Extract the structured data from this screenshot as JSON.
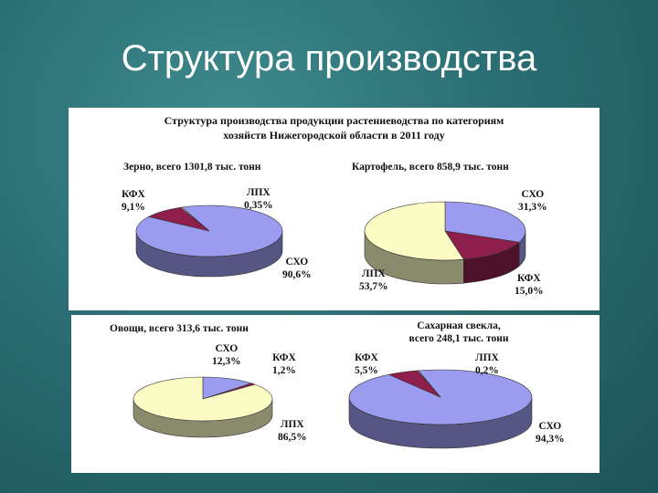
{
  "slide": {
    "title": "Структура производства"
  },
  "figure": {
    "title_line1": "Структура производства продукции растениеводства по категориям",
    "title_line2": "хозяйств Нижегородской области в 2011 году"
  },
  "colors": {
    "СХО": "#9b9cf0",
    "КФХ": "#8e1f4d",
    "ЛПХ": "#fbfbc4",
    "panel": "#ffffff",
    "background": "#2a6e73"
  },
  "chart_data": [
    {
      "type": "pie",
      "title": "Зерно, всего 1301,8 тыс. тонн",
      "slices": [
        {
          "name": "СХО",
          "value": 90.6,
          "label": "90,6%"
        },
        {
          "name": "КФХ",
          "value": 9.1,
          "label": "9,1%"
        },
        {
          "name": "ЛПХ",
          "value": 0.35,
          "label": "0,35%"
        }
      ]
    },
    {
      "type": "pie",
      "title": "Картофель, всего 858,9 тыс. тонн",
      "slices": [
        {
          "name": "СХО",
          "value": 31.3,
          "label": "31,3%"
        },
        {
          "name": "КФХ",
          "value": 15.0,
          "label": "15,0%"
        },
        {
          "name": "ЛПХ",
          "value": 53.7,
          "label": "53,7%"
        }
      ]
    },
    {
      "type": "pie",
      "title": "Овощи, всего 313,6 тыс. тонн",
      "slices": [
        {
          "name": "СХО",
          "value": 12.3,
          "label": "12,3%"
        },
        {
          "name": "КФХ",
          "value": 1.2,
          "label": "1,2%"
        },
        {
          "name": "ЛПХ",
          "value": 86.5,
          "label": "86,5%"
        }
      ]
    },
    {
      "type": "pie",
      "title_line1": "Сахарная свекла,",
      "title_line2": "всего 248,1 тыс. тонн",
      "slices": [
        {
          "name": "СХО",
          "value": 94.3,
          "label": "94,3%"
        },
        {
          "name": "КФХ",
          "value": 5.5,
          "label": "5,5%"
        },
        {
          "name": "ЛПХ",
          "value": 0.2,
          "label": "0,2%"
        }
      ]
    }
  ]
}
